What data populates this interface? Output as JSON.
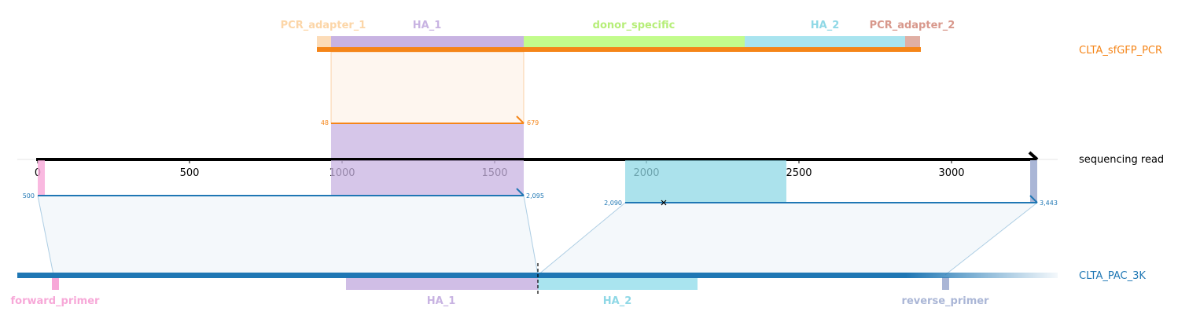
{
  "colors": {
    "pcr": "#f58518",
    "read": "#000000",
    "ref": "#1f77b4",
    "pcr_adapter_1": "#fcdcb8",
    "pcr_adapter_2": "#e0afa4",
    "ha_1": "#c8b3e2",
    "ha_2": "#8fd8e6",
    "donor_specific": "#c2fc8c",
    "forward_primer": "#f7a8d8",
    "reverse_primer": "#aab6d6"
  },
  "read": {
    "label": "sequencing read",
    "axis_ticks": [
      "0",
      "500",
      "1000",
      "1500",
      "2000",
      "2500",
      "3000"
    ]
  },
  "pcr_track": {
    "label": "CLTA_sfGFP_PCR",
    "features": [
      {
        "name": "PCR_adapter_1"
      },
      {
        "name": "HA_1"
      },
      {
        "name": "donor_specific"
      },
      {
        "name": "HA_2"
      },
      {
        "name": "PCR_adapter_2"
      }
    ]
  },
  "ref_track": {
    "label": "CLTA_PAC_3K",
    "features": [
      {
        "name": "forward_primer"
      },
      {
        "name": "HA_1"
      },
      {
        "name": "HA_2"
      },
      {
        "name": "reverse_primer"
      }
    ]
  },
  "alignments": {
    "pcr_left": "48",
    "pcr_right": "679",
    "ref1_left": "500",
    "ref1_right": "2,095",
    "ref2_left": "2,090",
    "ref2_right": "3,443"
  }
}
